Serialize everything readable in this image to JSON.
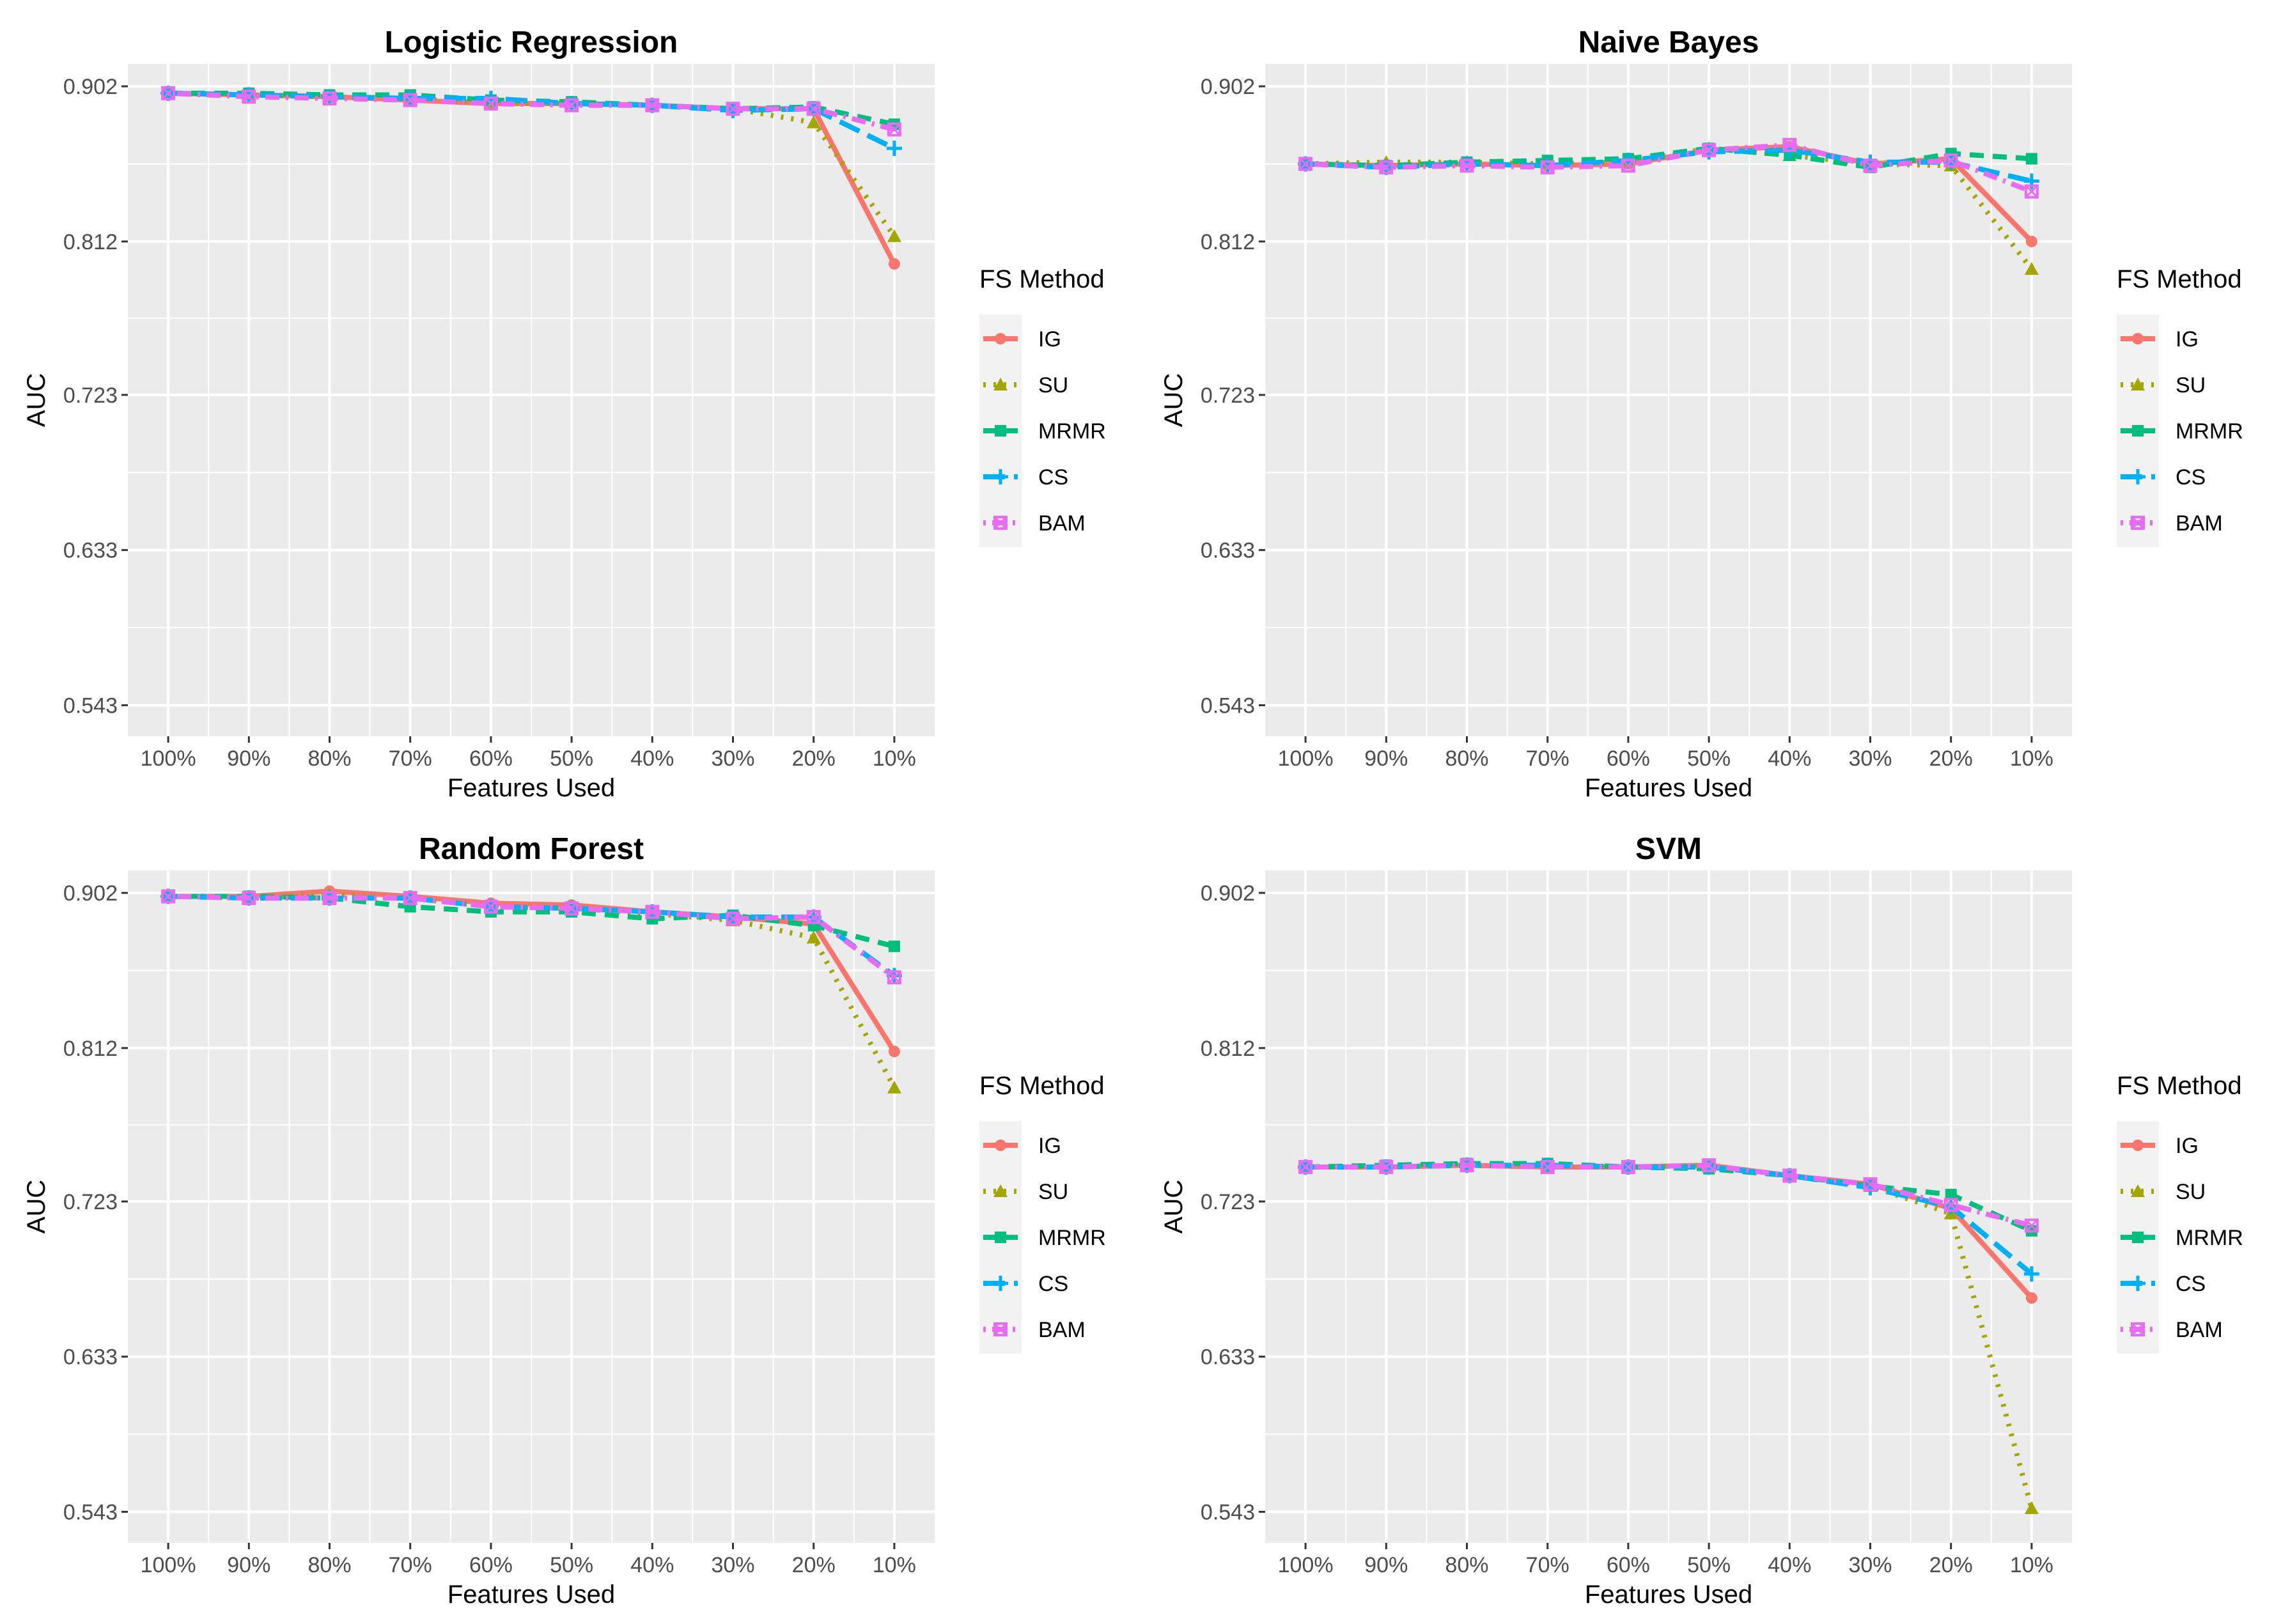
{
  "legend": {
    "title": "FS Method",
    "items": [
      {
        "key": "IG",
        "label": "IG",
        "color": "#F8766D",
        "dash": "solid",
        "marker": "circle"
      },
      {
        "key": "SU",
        "label": "SU",
        "color": "#A3A500",
        "dash": "dotted",
        "marker": "triangle"
      },
      {
        "key": "MRMR",
        "label": "MRMR",
        "color": "#00BF7D",
        "dash": "dashed",
        "marker": "square"
      },
      {
        "key": "CS",
        "label": "CS",
        "color": "#00B0F6",
        "dash": "longdash",
        "marker": "plus"
      },
      {
        "key": "BAM",
        "label": "BAM",
        "color": "#E76BF3",
        "dash": "dotdash",
        "marker": "boxx"
      }
    ]
  },
  "chart_data": [
    {
      "type": "line",
      "title": "Logistic Regression",
      "xlabel": "Features Used",
      "ylabel": "AUC",
      "categories": [
        "100%",
        "90%",
        "80%",
        "70%",
        "60%",
        "50%",
        "40%",
        "30%",
        "20%",
        "10%"
      ],
      "yticks": [
        0.543,
        0.633,
        0.723,
        0.812,
        0.902
      ],
      "ylim": [
        0.525,
        0.915
      ],
      "series": [
        {
          "name": "IG",
          "values": [
            0.898,
            0.897,
            0.896,
            0.894,
            0.892,
            0.892,
            0.891,
            0.889,
            0.889,
            0.799
          ]
        },
        {
          "name": "SU",
          "values": [
            0.898,
            0.897,
            0.896,
            0.895,
            0.892,
            0.892,
            0.891,
            0.889,
            0.881,
            0.815
          ]
        },
        {
          "name": "MRMR",
          "values": [
            0.898,
            0.898,
            0.897,
            0.897,
            0.894,
            0.893,
            0.891,
            0.889,
            0.89,
            0.88
          ]
        },
        {
          "name": "CS",
          "values": [
            0.898,
            0.897,
            0.896,
            0.895,
            0.895,
            0.892,
            0.891,
            0.888,
            0.889,
            0.866
          ]
        },
        {
          "name": "BAM",
          "values": [
            0.898,
            0.896,
            0.895,
            0.894,
            0.892,
            0.891,
            0.891,
            0.889,
            0.889,
            0.877
          ]
        }
      ]
    },
    {
      "type": "line",
      "title": "Naive Bayes",
      "xlabel": "Features Used",
      "ylabel": "AUC",
      "categories": [
        "100%",
        "90%",
        "80%",
        "70%",
        "60%",
        "50%",
        "40%",
        "30%",
        "20%",
        "10%"
      ],
      "yticks": [
        0.543,
        0.633,
        0.723,
        0.812,
        0.902
      ],
      "ylim": [
        0.525,
        0.915
      ],
      "series": [
        {
          "name": "IG",
          "values": [
            0.857,
            0.856,
            0.857,
            0.856,
            0.857,
            0.865,
            0.867,
            0.857,
            0.86,
            0.812
          ]
        },
        {
          "name": "SU",
          "values": [
            0.857,
            0.858,
            0.858,
            0.857,
            0.858,
            0.866,
            0.862,
            0.857,
            0.856,
            0.796
          ]
        },
        {
          "name": "MRMR",
          "values": [
            0.857,
            0.856,
            0.858,
            0.859,
            0.86,
            0.866,
            0.862,
            0.855,
            0.863,
            0.86
          ]
        },
        {
          "name": "CS",
          "values": [
            0.857,
            0.855,
            0.857,
            0.856,
            0.859,
            0.864,
            0.865,
            0.858,
            0.858,
            0.847
          ]
        },
        {
          "name": "BAM",
          "values": [
            0.857,
            0.855,
            0.856,
            0.855,
            0.856,
            0.865,
            0.868,
            0.856,
            0.859,
            0.841
          ]
        }
      ]
    },
    {
      "type": "line",
      "title": "Random Forest",
      "xlabel": "Features Used",
      "ylabel": "AUC",
      "categories": [
        "100%",
        "90%",
        "80%",
        "70%",
        "60%",
        "50%",
        "40%",
        "30%",
        "20%",
        "10%"
      ],
      "yticks": [
        0.543,
        0.633,
        0.723,
        0.812,
        0.902
      ],
      "ylim": [
        0.525,
        0.915
      ],
      "series": [
        {
          "name": "IG",
          "values": [
            0.9,
            0.9,
            0.903,
            0.9,
            0.896,
            0.895,
            0.891,
            0.888,
            0.884,
            0.81
          ]
        },
        {
          "name": "SU",
          "values": [
            0.9,
            0.899,
            0.901,
            0.899,
            0.894,
            0.893,
            0.89,
            0.886,
            0.876,
            0.789
          ]
        },
        {
          "name": "MRMR",
          "values": [
            0.9,
            0.9,
            0.899,
            0.894,
            0.891,
            0.891,
            0.887,
            0.889,
            0.883,
            0.871
          ]
        },
        {
          "name": "CS",
          "values": [
            0.9,
            0.899,
            0.899,
            0.899,
            0.894,
            0.893,
            0.891,
            0.888,
            0.888,
            0.854
          ]
        },
        {
          "name": "BAM",
          "values": [
            0.9,
            0.899,
            0.899,
            0.899,
            0.894,
            0.893,
            0.891,
            0.887,
            0.888,
            0.853
          ]
        }
      ]
    },
    {
      "type": "line",
      "title": "SVM",
      "xlabel": "Features Used",
      "ylabel": "AUC",
      "categories": [
        "100%",
        "90%",
        "80%",
        "70%",
        "60%",
        "50%",
        "40%",
        "30%",
        "20%",
        "10%"
      ],
      "yticks": [
        0.543,
        0.633,
        0.723,
        0.812,
        0.902
      ],
      "ylim": [
        0.525,
        0.915
      ],
      "series": [
        {
          "name": "IG",
          "values": [
            0.743,
            0.743,
            0.744,
            0.743,
            0.743,
            0.744,
            0.738,
            0.733,
            0.719,
            0.667
          ]
        },
        {
          "name": "SU",
          "values": [
            0.743,
            0.743,
            0.744,
            0.743,
            0.743,
            0.744,
            0.738,
            0.732,
            0.716,
            0.545
          ]
        },
        {
          "name": "MRMR",
          "values": [
            0.743,
            0.744,
            0.745,
            0.745,
            0.743,
            0.742,
            0.738,
            0.732,
            0.727,
            0.706
          ]
        },
        {
          "name": "CS",
          "values": [
            0.743,
            0.743,
            0.744,
            0.744,
            0.743,
            0.743,
            0.738,
            0.731,
            0.72,
            0.681
          ]
        },
        {
          "name": "BAM",
          "values": [
            0.743,
            0.743,
            0.744,
            0.743,
            0.743,
            0.744,
            0.738,
            0.733,
            0.721,
            0.709
          ]
        }
      ]
    }
  ]
}
